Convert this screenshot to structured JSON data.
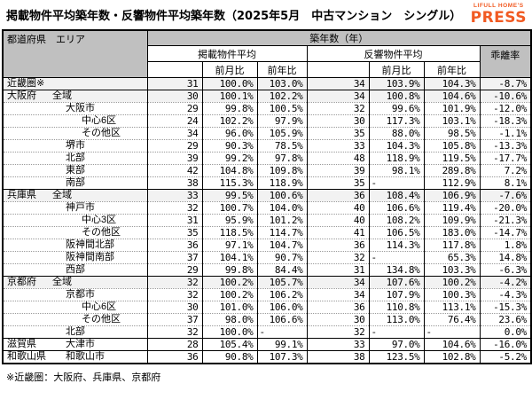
{
  "title": "掲載物件平均築年数・反響物件平均築年数（2025年5月　中古マンション　シングル）",
  "logo": {
    "top": "LIFULL HOME'S",
    "main": "PRESS",
    "color": "#F15A22"
  },
  "footnote": "※近畿圏：大阪府、兵庫県、京都府",
  "table": {
    "header": {
      "col_area": "都道府県　エリア",
      "col_group": "築年数（年）",
      "listed": "掲載物件平均",
      "response": "反響物件平均",
      "mom": "前月比",
      "yoy": "前年比",
      "divergence": "乖離率"
    },
    "rows": [
      {
        "pref": "近畿圏※",
        "area": "",
        "indent": 0,
        "shaded": true,
        "group_start": false,
        "listed_avg": "31",
        "listed_mom": "100.0%",
        "listed_yoy": "103.0%",
        "resp_avg": "34",
        "resp_mom": "103.9%",
        "resp_yoy": "104.3%",
        "divergence": "-8.7%"
      },
      {
        "pref": "大阪府",
        "area": "全域",
        "indent": 1,
        "shaded": true,
        "group_start": true,
        "listed_avg": "30",
        "listed_mom": "100.1%",
        "listed_yoy": "102.2%",
        "resp_avg": "34",
        "resp_mom": "100.8%",
        "resp_yoy": "104.6%",
        "divergence": "-10.6%"
      },
      {
        "pref": "",
        "area": "大阪市",
        "indent": 2,
        "shaded": false,
        "group_start": false,
        "listed_avg": "29",
        "listed_mom": "99.8%",
        "listed_yoy": "100.5%",
        "resp_avg": "32",
        "resp_mom": "99.6%",
        "resp_yoy": "101.9%",
        "divergence": "-12.0%"
      },
      {
        "pref": "",
        "area": "中心6区",
        "indent": 3,
        "shaded": false,
        "group_start": false,
        "listed_avg": "24",
        "listed_mom": "102.2%",
        "listed_yoy": "97.9%",
        "resp_avg": "30",
        "resp_mom": "117.3%",
        "resp_yoy": "103.1%",
        "divergence": "-18.3%"
      },
      {
        "pref": "",
        "area": "その他区",
        "indent": 3,
        "shaded": false,
        "group_start": false,
        "listed_avg": "34",
        "listed_mom": "96.0%",
        "listed_yoy": "105.9%",
        "resp_avg": "35",
        "resp_mom": "88.0%",
        "resp_yoy": "98.5%",
        "divergence": "-1.1%"
      },
      {
        "pref": "",
        "area": "堺市",
        "indent": 2,
        "shaded": false,
        "group_start": false,
        "listed_avg": "29",
        "listed_mom": "90.3%",
        "listed_yoy": "78.5%",
        "resp_avg": "33",
        "resp_mom": "104.3%",
        "resp_yoy": "105.8%",
        "divergence": "-13.3%"
      },
      {
        "pref": "",
        "area": "北部",
        "indent": 2,
        "shaded": false,
        "group_start": false,
        "listed_avg": "39",
        "listed_mom": "99.2%",
        "listed_yoy": "97.8%",
        "resp_avg": "48",
        "resp_mom": "118.9%",
        "resp_yoy": "119.5%",
        "divergence": "-17.7%"
      },
      {
        "pref": "",
        "area": "東部",
        "indent": 2,
        "shaded": false,
        "group_start": false,
        "listed_avg": "42",
        "listed_mom": "104.8%",
        "listed_yoy": "109.8%",
        "resp_avg": "39",
        "resp_mom": "98.1%",
        "resp_yoy": "289.8%",
        "divergence": "7.2%"
      },
      {
        "pref": "",
        "area": "南部",
        "indent": 2,
        "shaded": false,
        "group_start": false,
        "listed_avg": "38",
        "listed_mom": "115.3%",
        "listed_yoy": "118.9%",
        "resp_avg": "35",
        "resp_mom": "-",
        "resp_yoy": "112.9%",
        "divergence": "8.1%"
      },
      {
        "pref": "兵庫県",
        "area": "全域",
        "indent": 1,
        "shaded": true,
        "group_start": true,
        "listed_avg": "33",
        "listed_mom": "99.5%",
        "listed_yoy": "100.6%",
        "resp_avg": "36",
        "resp_mom": "108.4%",
        "resp_yoy": "106.9%",
        "divergence": "-7.6%"
      },
      {
        "pref": "",
        "area": "神戸市",
        "indent": 2,
        "shaded": false,
        "group_start": false,
        "listed_avg": "32",
        "listed_mom": "100.7%",
        "listed_yoy": "104.0%",
        "resp_avg": "40",
        "resp_mom": "106.6%",
        "resp_yoy": "119.4%",
        "divergence": "-20.0%"
      },
      {
        "pref": "",
        "area": "中心3区",
        "indent": 3,
        "shaded": false,
        "group_start": false,
        "listed_avg": "31",
        "listed_mom": "95.9%",
        "listed_yoy": "101.2%",
        "resp_avg": "40",
        "resp_mom": "108.2%",
        "resp_yoy": "109.9%",
        "divergence": "-21.3%"
      },
      {
        "pref": "",
        "area": "その他区",
        "indent": 3,
        "shaded": false,
        "group_start": false,
        "listed_avg": "35",
        "listed_mom": "118.5%",
        "listed_yoy": "114.7%",
        "resp_avg": "41",
        "resp_mom": "106.5%",
        "resp_yoy": "183.0%",
        "divergence": "-14.7%"
      },
      {
        "pref": "",
        "area": "阪神間北部",
        "indent": 2,
        "shaded": false,
        "group_start": false,
        "listed_avg": "36",
        "listed_mom": "97.1%",
        "listed_yoy": "104.7%",
        "resp_avg": "36",
        "resp_mom": "114.3%",
        "resp_yoy": "117.8%",
        "divergence": "1.8%"
      },
      {
        "pref": "",
        "area": "阪神間南部",
        "indent": 2,
        "shaded": false,
        "group_start": false,
        "listed_avg": "37",
        "listed_mom": "104.1%",
        "listed_yoy": "90.7%",
        "resp_avg": "32",
        "resp_mom": "-",
        "resp_yoy": "65.3%",
        "divergence": "14.8%"
      },
      {
        "pref": "",
        "area": "西部",
        "indent": 2,
        "shaded": false,
        "group_start": false,
        "listed_avg": "29",
        "listed_mom": "99.8%",
        "listed_yoy": "84.4%",
        "resp_avg": "31",
        "resp_mom": "134.8%",
        "resp_yoy": "103.3%",
        "divergence": "-6.3%"
      },
      {
        "pref": "京都府",
        "area": "全域",
        "indent": 1,
        "shaded": true,
        "group_start": true,
        "listed_avg": "32",
        "listed_mom": "100.2%",
        "listed_yoy": "105.7%",
        "resp_avg": "34",
        "resp_mom": "107.6%",
        "resp_yoy": "100.2%",
        "divergence": "-4.2%"
      },
      {
        "pref": "",
        "area": "京都市",
        "indent": 2,
        "shaded": false,
        "group_start": false,
        "listed_avg": "32",
        "listed_mom": "100.2%",
        "listed_yoy": "106.2%",
        "resp_avg": "34",
        "resp_mom": "107.9%",
        "resp_yoy": "100.3%",
        "divergence": "-4.3%"
      },
      {
        "pref": "",
        "area": "中心6区",
        "indent": 3,
        "shaded": false,
        "group_start": false,
        "listed_avg": "30",
        "listed_mom": "101.0%",
        "listed_yoy": "106.0%",
        "resp_avg": "36",
        "resp_mom": "110.8%",
        "resp_yoy": "113.1%",
        "divergence": "-15.3%"
      },
      {
        "pref": "",
        "area": "その他区",
        "indent": 3,
        "shaded": false,
        "group_start": false,
        "listed_avg": "37",
        "listed_mom": "98.0%",
        "listed_yoy": "106.6%",
        "resp_avg": "30",
        "resp_mom": "113.0%",
        "resp_yoy": "76.4%",
        "divergence": "23.6%"
      },
      {
        "pref": "",
        "area": "北部",
        "indent": 2,
        "shaded": false,
        "group_start": false,
        "listed_avg": "32",
        "listed_mom": "100.0%",
        "listed_yoy": "-",
        "resp_avg": "32",
        "resp_mom": "-",
        "resp_yoy": "-",
        "divergence": "0.0%"
      },
      {
        "pref": "滋賀県",
        "area": "大津市",
        "indent": 2,
        "shaded": false,
        "group_start": true,
        "listed_avg": "28",
        "listed_mom": "105.4%",
        "listed_yoy": "99.1%",
        "resp_avg": "33",
        "resp_mom": "97.0%",
        "resp_yoy": "104.6%",
        "divergence": "-16.0%"
      },
      {
        "pref": "和歌山県",
        "area": "和歌山市",
        "indent": 2,
        "shaded": false,
        "group_start": true,
        "listed_avg": "36",
        "listed_mom": "90.8%",
        "listed_yoy": "107.3%",
        "resp_avg": "38",
        "resp_mom": "123.5%",
        "resp_yoy": "102.8%",
        "divergence": "-5.2%"
      }
    ]
  }
}
